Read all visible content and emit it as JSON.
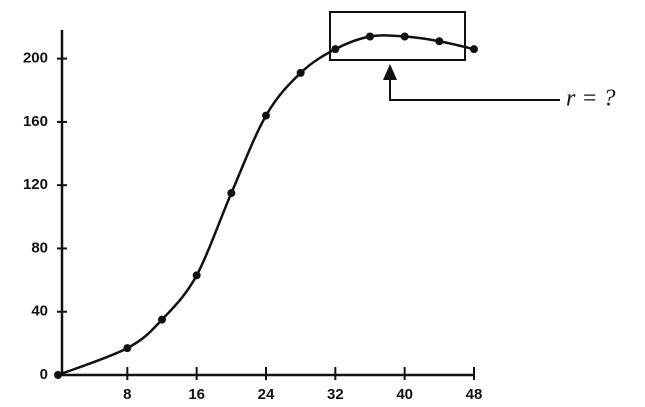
{
  "chart_data": {
    "type": "line",
    "annotation": "r = ?",
    "x": [
      0,
      8,
      12,
      16,
      20,
      24,
      28,
      32,
      36,
      40,
      44,
      48
    ],
    "series": [
      {
        "color": "#111111",
        "values": [
          0,
          17,
          35,
          63,
          115,
          164,
          191,
          206,
          214,
          214,
          211,
          206
        ]
      }
    ],
    "xlim": [
      0,
      48
    ],
    "xticks": [
      8,
      16,
      24,
      32,
      40,
      48
    ],
    "ylim": [
      0,
      220
    ],
    "yticks": [
      0,
      40,
      80,
      120,
      160,
      200
    ],
    "grid": false
  }
}
